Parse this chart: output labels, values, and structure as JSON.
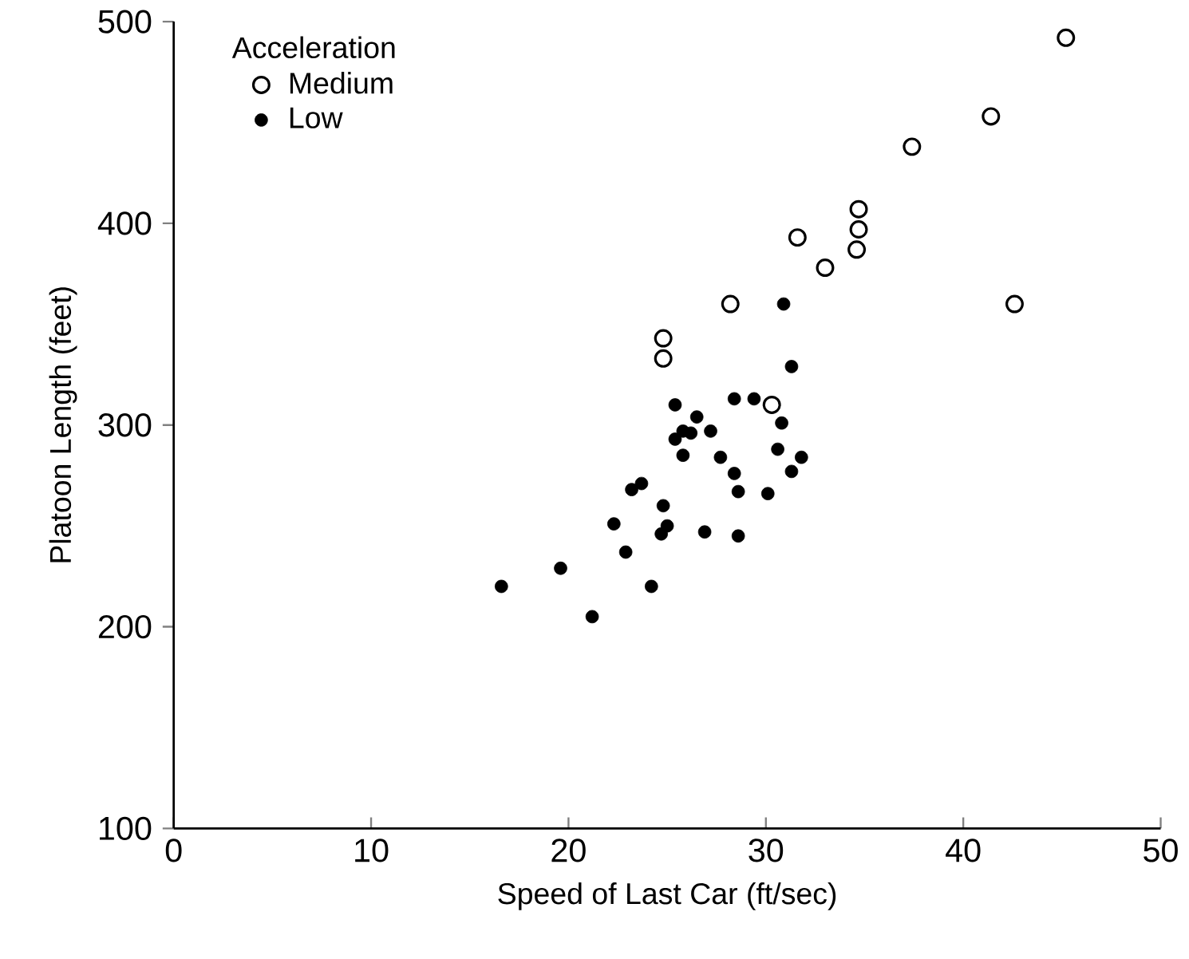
{
  "chart_data": {
    "type": "scatter",
    "xlabel": "Speed of Last Car (ft/sec)",
    "ylabel": "Platoon Length (feet)",
    "legend_title": "Acceleration",
    "xlim": [
      0,
      50
    ],
    "ylim": [
      100,
      500
    ],
    "xticks": [
      0,
      10,
      20,
      30,
      40,
      50
    ],
    "yticks": [
      100,
      200,
      300,
      400,
      500
    ],
    "grid": false,
    "legend": "top left",
    "series": [
      {
        "name": "Medium",
        "color": "#000000",
        "marker": "circle_open",
        "x": [
          45.2,
          41.4,
          37.4,
          34.7,
          34.7,
          34.6,
          31.6,
          33.0,
          28.2,
          42.6,
          24.8,
          24.8,
          30.3
        ],
        "values": [
          492,
          453,
          438,
          407,
          397,
          387,
          393,
          378,
          360,
          360,
          343,
          333,
          310
        ]
      },
      {
        "name": "Low",
        "color": "#000000",
        "marker": "circle",
        "x": [
          30.9,
          31.3,
          25.4,
          28.4,
          29.4,
          26.5,
          26.2,
          25.8,
          27.2,
          25.4,
          30.8,
          25.8,
          27.7,
          30.6,
          31.8,
          28.4,
          31.3,
          28.6,
          30.1,
          23.7,
          23.2,
          24.8,
          22.3,
          25.0,
          24.7,
          26.9,
          28.6,
          22.9,
          19.6,
          16.6,
          24.2,
          21.2
        ],
        "values": [
          360,
          329,
          310,
          313,
          313,
          304,
          296,
          297,
          297,
          293,
          301,
          285,
          284,
          288,
          284,
          276,
          277,
          267,
          266,
          271,
          268,
          260,
          251,
          250,
          246,
          247,
          245,
          237,
          229,
          220,
          220,
          205
        ]
      }
    ]
  }
}
